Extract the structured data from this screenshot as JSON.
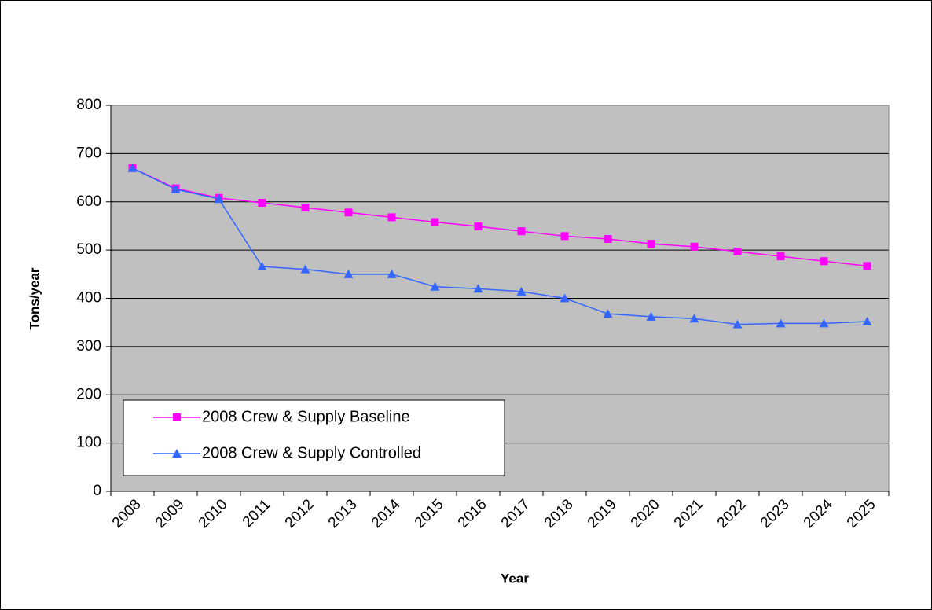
{
  "chart_data": {
    "type": "line",
    "x_label": "Year",
    "y_label": "Tons/year",
    "categories": [
      "2008",
      "2009",
      "2010",
      "2011",
      "2012",
      "2013",
      "2014",
      "2015",
      "2016",
      "2017",
      "2018",
      "2019",
      "2020",
      "2021",
      "2022",
      "2023",
      "2024",
      "2025"
    ],
    "series": [
      {
        "name": "2008 Crew & Supply Baseline",
        "color": "#ff00ff",
        "marker": "square",
        "values": [
          670,
          628,
          608,
          598,
          588,
          578,
          568,
          558,
          549,
          539,
          529,
          523,
          513,
          507,
          497,
          487,
          477,
          467
        ]
      },
      {
        "name": "2008 Crew & Supply Controlled",
        "color": "#3366ff",
        "marker": "triangle",
        "values": [
          670,
          626,
          606,
          466,
          460,
          450,
          450,
          424,
          420,
          414,
          400,
          368,
          362,
          358,
          346,
          348,
          348,
          352
        ]
      }
    ],
    "ylim": [
      0,
      800
    ],
    "yticks": [
      0,
      100,
      200,
      300,
      400,
      500,
      600,
      700,
      800
    ],
    "grid": true,
    "legend": "lower left",
    "plot_background": "#c0c0c0"
  }
}
